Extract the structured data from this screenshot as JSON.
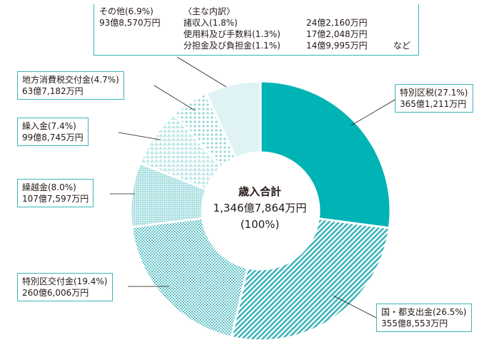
{
  "chart_data": {
    "type": "pie",
    "style": "donut",
    "categories": [
      "特別区税",
      "国・都支出金",
      "特別区交付金",
      "繰越金",
      "繰入金",
      "地方消費税交付金",
      "その他"
    ],
    "percents": [
      27.1,
      26.5,
      19.4,
      8.0,
      7.4,
      4.7,
      6.9
    ],
    "values_label": [
      "365億1,211万円",
      "355億8,553万円",
      "260億6,006万円",
      "107億7,597万円",
      "99億8,745万円",
      "63億7,182万円",
      "93億8,570万円"
    ],
    "labels": [
      {
        "name": "特別区税(27.1%)",
        "amount": "365億1,211万円"
      },
      {
        "name": "国・都支出金(26.5%)",
        "amount": "355億8,553万円"
      },
      {
        "name": "特別区交付金(19.4%)",
        "amount": "260億6,006万円"
      },
      {
        "name": "繰越金(8.0%)",
        "amount": "107億7,597万円"
      },
      {
        "name": "繰入金(7.4%)",
        "amount": "99億8,745万円"
      },
      {
        "name": "地方消費税交付金(4.7%)",
        "amount": "63億7,182万円"
      },
      {
        "name": "その他(6.9%)",
        "amount": "93億8,570万円"
      }
    ],
    "center": {
      "title": "歳入合計",
      "total": "1,346億7,864万円",
      "percent": "(100%)"
    },
    "other_breakdown": {
      "header": "〈主な内訳〉",
      "items": [
        {
          "name": "諸収入(1.8%)",
          "amount": "24億2,160万円"
        },
        {
          "name": "使用料及び手数料(1.3%)",
          "amount": "17億2,048万円"
        },
        {
          "name": "分担金及び負担金(1.1%)",
          "amount": "14億9,995万円"
        }
      ],
      "suffix": "など"
    },
    "colors": {
      "accent": "#00b3b5",
      "stripe": "#3cb4b9",
      "light": "#dff3f4"
    }
  }
}
